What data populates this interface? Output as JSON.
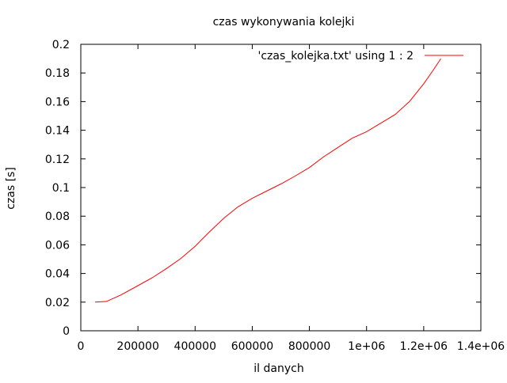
{
  "chart_data": {
    "type": "line",
    "title": "czas wykonywania kolejki",
    "xlabel": "il danych",
    "ylabel": "czas [s]",
    "xlim": [
      0,
      1400000
    ],
    "ylim": [
      0,
      0.2
    ],
    "x_ticks": [
      0,
      200000,
      400000,
      600000,
      800000,
      1000000,
      1200000,
      1400000
    ],
    "x_tick_labels": [
      "0",
      "200000",
      "400000",
      "600000",
      "800000",
      "1e+06",
      "1.2e+06",
      "1.4e+06"
    ],
    "y_ticks": [
      0,
      0.02,
      0.04,
      0.06,
      0.08,
      0.1,
      0.12,
      0.14,
      0.16,
      0.18,
      0.2
    ],
    "y_tick_labels": [
      "0",
      "0.02",
      "0.04",
      "0.06",
      "0.08",
      "0.1",
      "0.12",
      "0.14",
      "0.16",
      "0.18",
      "0.2"
    ],
    "grid": false,
    "legend_position": "top-right",
    "series": [
      {
        "name": "'czas_kolejka.txt' using 1 : 2",
        "color": "#ff0000",
        "x": [
          50000,
          90000,
          140000,
          200000,
          250000,
          300000,
          350000,
          400000,
          450000,
          500000,
          550000,
          600000,
          650000,
          700000,
          750000,
          800000,
          850000,
          900000,
          950000,
          1000000,
          1050000,
          1100000,
          1150000,
          1200000,
          1230000,
          1260000
        ],
        "y": [
          0.02,
          0.0205,
          0.025,
          0.0315,
          0.037,
          0.0435,
          0.0505,
          0.059,
          0.069,
          0.0785,
          0.0865,
          0.0925,
          0.0975,
          0.1025,
          0.108,
          0.114,
          0.1215,
          0.128,
          0.1345,
          0.139,
          0.145,
          0.151,
          0.16,
          0.1725,
          0.181,
          0.19
        ]
      }
    ]
  }
}
